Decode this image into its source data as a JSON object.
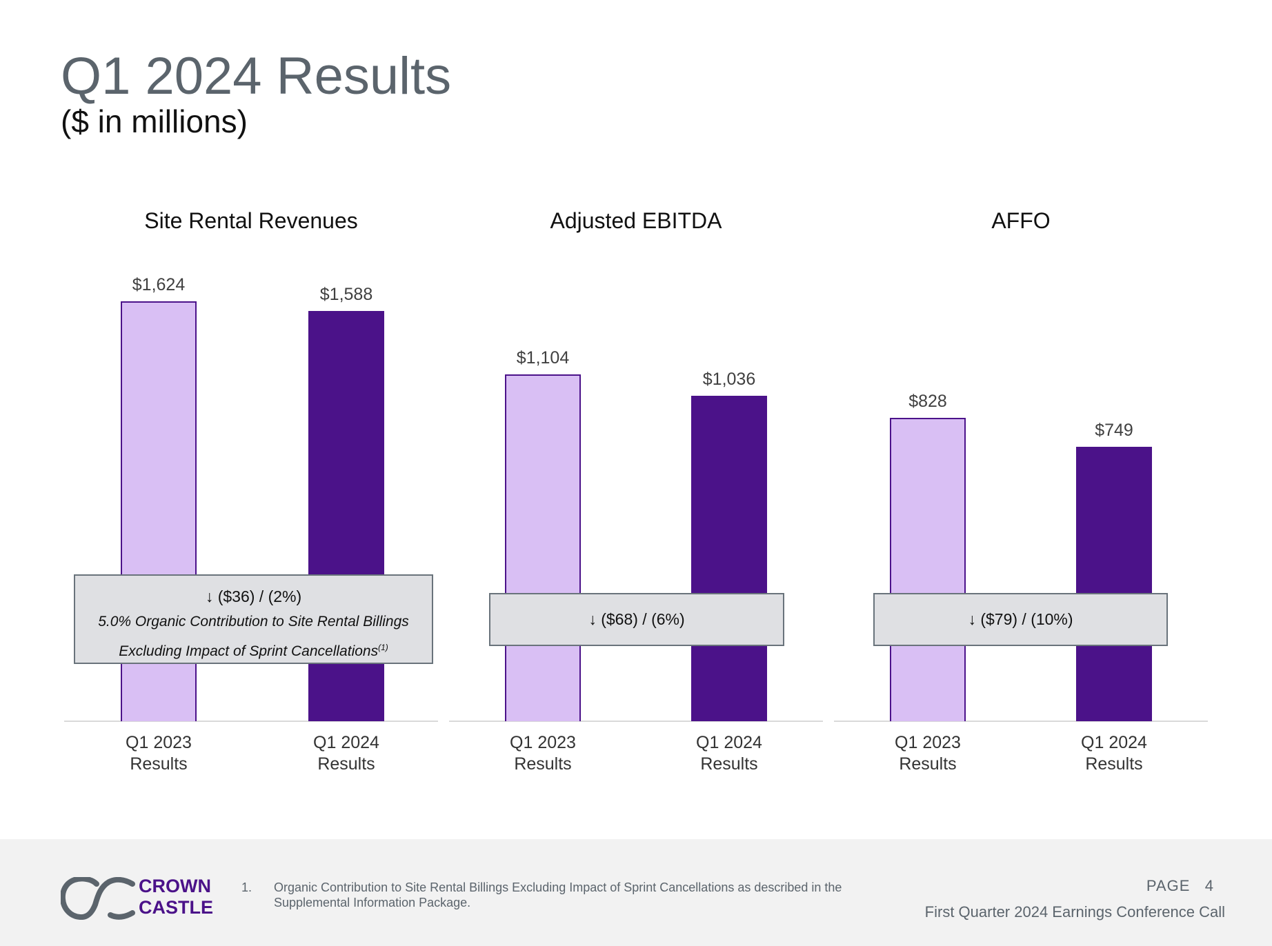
{
  "header": {
    "title": "Q1 2024 Results",
    "subtitle": "($ in millions)"
  },
  "colors": {
    "prior_bar": "#d9bff4",
    "prior_bar_border": "#4b128a",
    "current_bar": "#4b1289",
    "callout_bg": "#dfe0e3",
    "title_gray": "#5b646c"
  },
  "chart_data": [
    {
      "type": "bar",
      "title": "Site Rental Revenues",
      "categories": [
        "Q1 2023 Results",
        "Q1 2024 Results"
      ],
      "category_lines": [
        [
          "Q1 2023",
          "Results"
        ],
        [
          "Q1 2024",
          "Results"
        ]
      ],
      "values": [
        1624,
        1588
      ],
      "value_labels": [
        "$1,624",
        "$1,588"
      ],
      "xlabel": "",
      "ylabel": "",
      "ylim": [
        0,
        1867
      ],
      "grid": false,
      "callout": {
        "main": "↓ ($36) / (2%)",
        "note_line1": "5.0% Organic Contribution to Site Rental Billings",
        "note_line2": "Excluding Impact of Sprint Cancellations",
        "footnote_ref": "(1)"
      }
    },
    {
      "type": "bar",
      "title": "Adjusted EBITDA",
      "categories": [
        "Q1 2023 Results",
        "Q1 2024 Results"
      ],
      "category_lines": [
        [
          "Q1 2023",
          "Results"
        ],
        [
          "Q1 2024",
          "Results"
        ]
      ],
      "values": [
        1104,
        1036
      ],
      "value_labels": [
        "$1,104",
        "$1,036"
      ],
      "xlabel": "",
      "ylabel": "",
      "ylim": [
        0,
        1535
      ],
      "grid": false,
      "callout": {
        "main": "↓ ($68) / (6%)"
      }
    },
    {
      "type": "bar",
      "title": "AFFO",
      "categories": [
        "Q1 2023 Results",
        "Q1 2024 Results"
      ],
      "category_lines": [
        [
          "Q1 2023",
          "Results"
        ],
        [
          "Q1 2024",
          "Results"
        ]
      ],
      "values": [
        828,
        749
      ],
      "value_labels": [
        "$828",
        "$749"
      ],
      "xlabel": "",
      "ylabel": "",
      "ylim": [
        0,
        1318
      ],
      "grid": false,
      "callout": {
        "main": "↓ ($79) / (10%)"
      }
    }
  ],
  "footer": {
    "logo_line1": "CROWN",
    "logo_line2": "CASTLE",
    "footnote_number": "1.",
    "footnote_text": "Organic Contribution to Site Rental Billings Excluding Impact of Sprint Cancellations as described in the Supplemental Information Package.",
    "page_label": "PAGE",
    "page_number": "4",
    "event": "First Quarter 2024 Earnings Conference Call"
  }
}
